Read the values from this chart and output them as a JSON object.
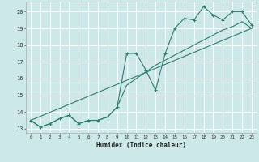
{
  "background_color": "#cce8e8",
  "grid_color": "#ffffff",
  "line_color": "#2e7d6e",
  "xlabel": "Humidex (Indice chaleur)",
  "xlim": [
    -0.5,
    23.5
  ],
  "ylim": [
    12.75,
    20.6
  ],
  "yticks": [
    13,
    14,
    15,
    16,
    17,
    18,
    19,
    20
  ],
  "xticks": [
    0,
    1,
    2,
    3,
    4,
    5,
    6,
    7,
    8,
    9,
    10,
    11,
    12,
    13,
    14,
    15,
    16,
    17,
    18,
    19,
    20,
    21,
    22,
    23
  ],
  "line1_x": [
    0,
    1,
    2,
    3,
    4,
    5,
    6,
    7,
    8,
    9,
    10,
    11,
    12,
    13,
    14,
    15,
    16,
    17,
    18,
    19,
    20,
    21,
    22,
    23
  ],
  "line1_y": [
    13.5,
    13.1,
    13.3,
    13.6,
    13.8,
    13.3,
    13.5,
    13.5,
    13.7,
    14.3,
    17.5,
    17.5,
    16.5,
    15.3,
    17.5,
    19.0,
    19.6,
    19.5,
    20.3,
    19.8,
    19.5,
    20.0,
    20.0,
    19.2
  ],
  "line2_x": [
    0,
    1,
    2,
    3,
    4,
    5,
    6,
    7,
    8,
    9,
    10,
    11,
    12,
    13,
    14,
    15,
    16,
    17,
    18,
    19,
    20,
    21,
    22,
    23
  ],
  "line2_y": [
    13.5,
    13.1,
    13.3,
    13.6,
    13.8,
    13.3,
    13.5,
    13.5,
    13.7,
    14.3,
    15.6,
    16.0,
    16.4,
    16.8,
    17.1,
    17.4,
    17.7,
    18.0,
    18.3,
    18.6,
    18.9,
    19.1,
    19.4,
    19.0
  ],
  "line3_x": [
    0,
    23
  ],
  "line3_y": [
    13.5,
    19.0
  ]
}
